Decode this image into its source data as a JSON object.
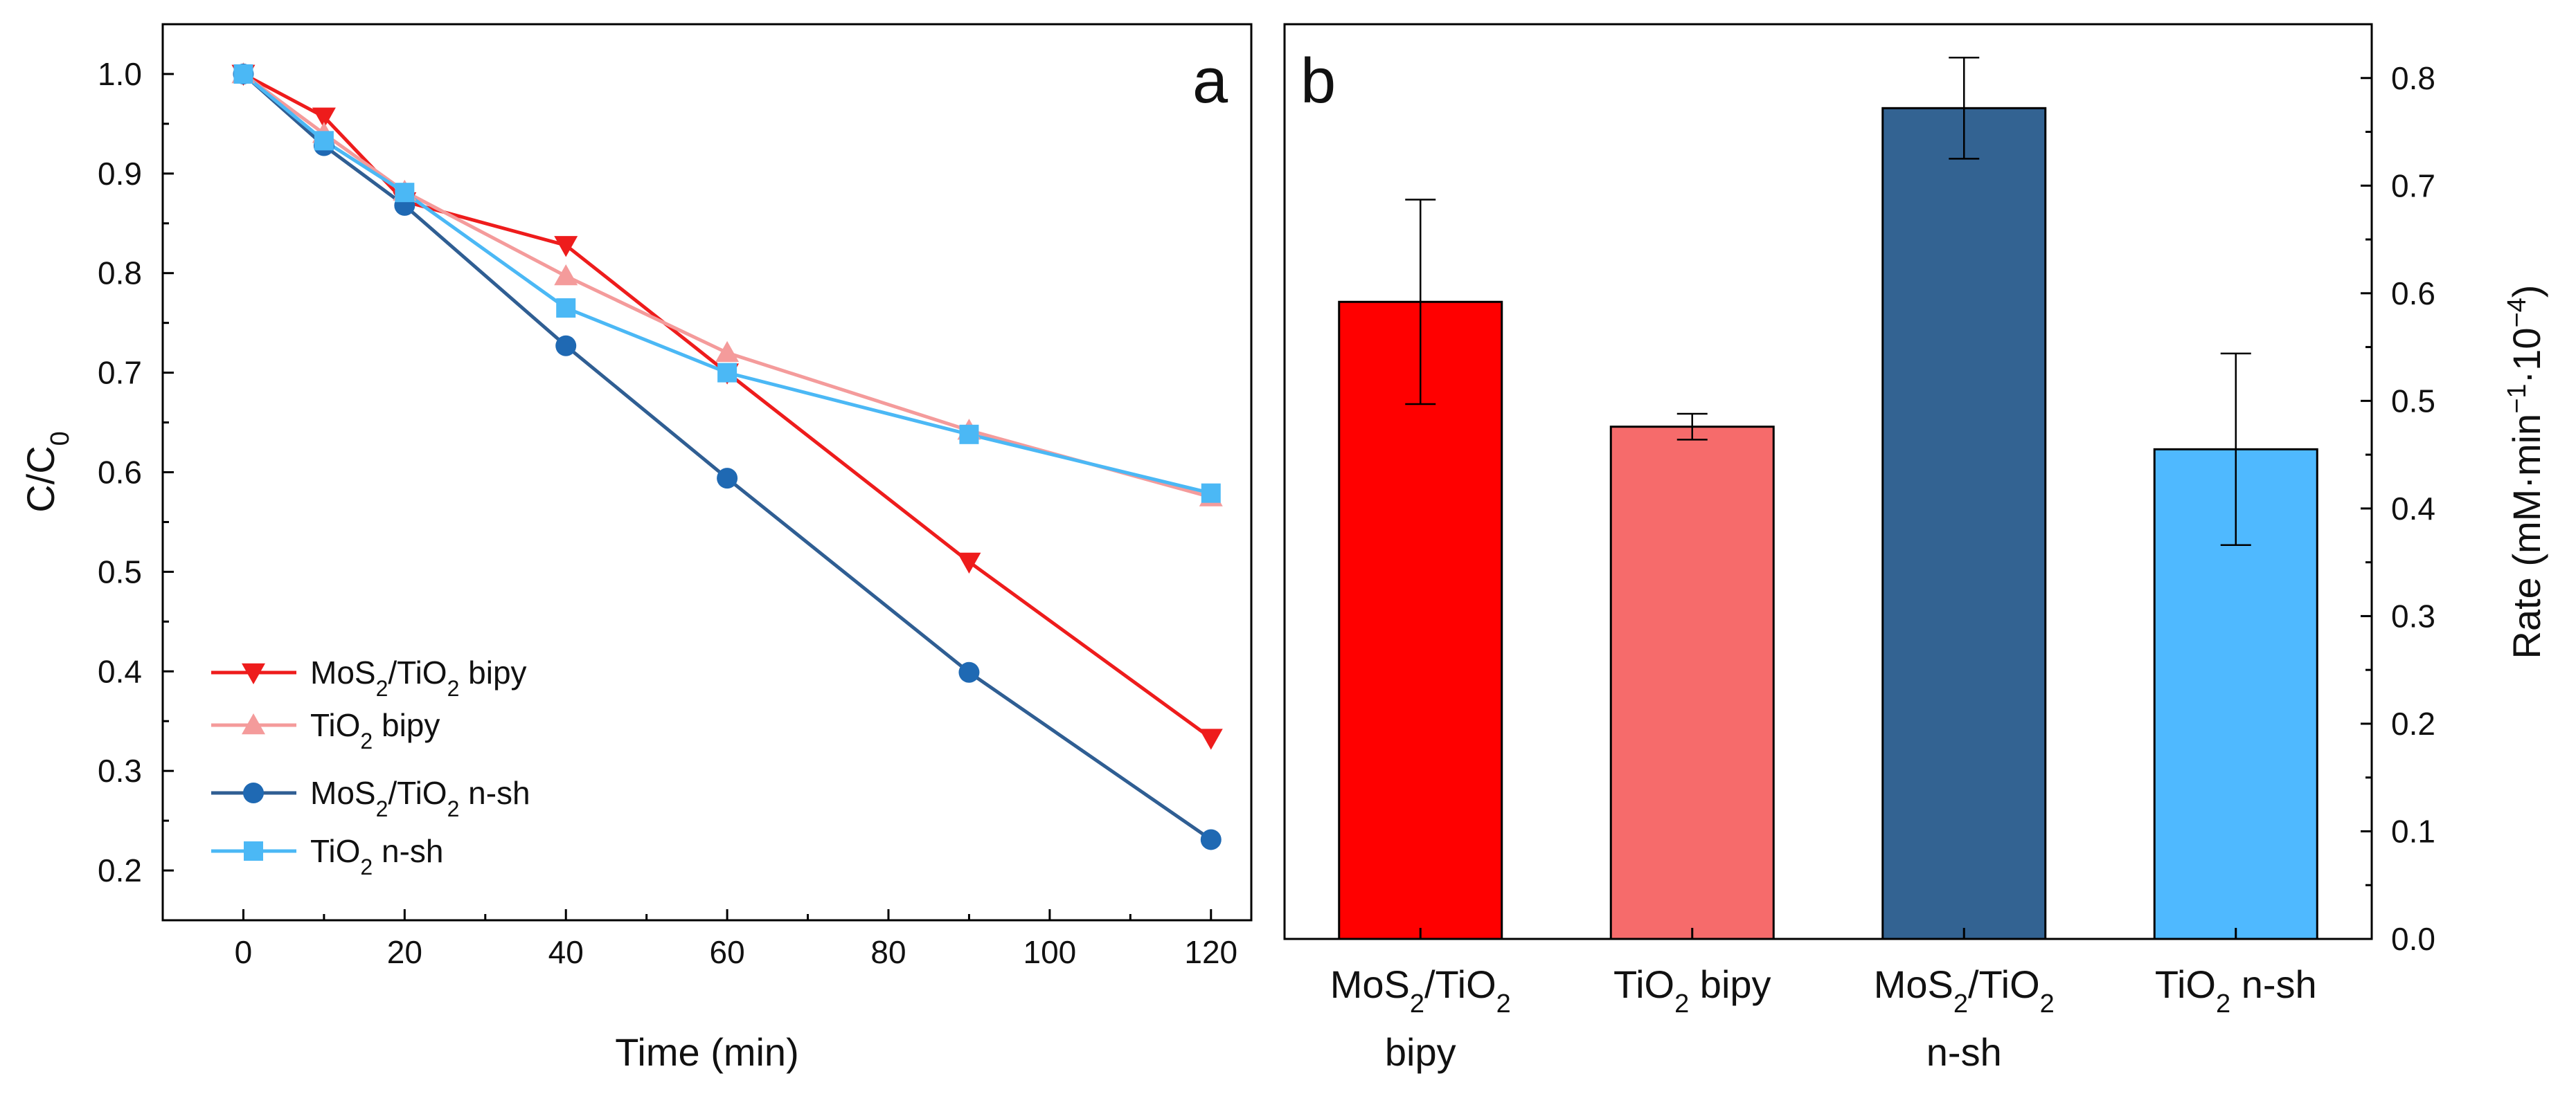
{
  "chart_data": [
    {
      "panel": "a",
      "type": "line",
      "xlabel": "Time (min)",
      "ylabel": {
        "main": "C/C",
        "sub": "0"
      },
      "xlim": [
        -10,
        125
      ],
      "ylim": [
        0.15,
        1.05
      ],
      "xticks": [
        0,
        20,
        40,
        60,
        80,
        100,
        120
      ],
      "yticks": [
        0.2,
        0.3,
        0.4,
        0.5,
        0.6,
        0.7,
        0.8,
        0.9,
        1.0
      ],
      "ytick_labels": [
        "0.2",
        "0.3",
        "0.4",
        "0.5",
        "0.6",
        "0.7",
        "0.8",
        "0.9",
        "1.0"
      ],
      "legend_position": "bottom-left",
      "series": [
        {
          "key": "mos2_bipy",
          "parts": [
            "MoS",
            "2",
            "/TiO",
            "2",
            " bipy"
          ],
          "color": "#ee1c1c",
          "marker": "triangle-down",
          "x": [
            0,
            10,
            20,
            40,
            60,
            90,
            120
          ],
          "y": [
            1.0,
            0.957,
            0.872,
            0.828,
            0.7,
            0.51,
            0.333
          ]
        },
        {
          "key": "tio2_bipy",
          "parts": [
            "TiO",
            "2",
            " bipy"
          ],
          "color": "#f49b9b",
          "marker": "triangle-up",
          "x": [
            0,
            10,
            20,
            40,
            60,
            90,
            120
          ],
          "y": [
            1.0,
            0.94,
            0.882,
            0.797,
            0.72,
            0.642,
            0.575
          ]
        },
        {
          "key": "mos2_nsh",
          "parts": [
            "MoS",
            "2",
            "/TiO",
            "2",
            " n-sh"
          ],
          "color": "#2f5e93",
          "marker": "circle",
          "marker_color": "#1f69b3",
          "x": [
            0,
            10,
            20,
            40,
            60,
            90,
            120
          ],
          "y": [
            1.0,
            0.928,
            0.868,
            0.727,
            0.594,
            0.399,
            0.231
          ]
        },
        {
          "key": "tio2_nsh",
          "parts": [
            "TiO",
            "2",
            " n-sh"
          ],
          "color": "#4bb8f5",
          "marker": "square",
          "x": [
            0,
            10,
            20,
            40,
            60,
            90,
            120
          ],
          "y": [
            1.0,
            0.933,
            0.881,
            0.765,
            0.7,
            0.638,
            0.579
          ]
        }
      ]
    },
    {
      "panel": "b",
      "type": "bar",
      "ylabel": {
        "parts": [
          "Rate (mM·min",
          "−1",
          "·10",
          "−4",
          ")"
        ]
      },
      "ylim": [
        0.0,
        0.85
      ],
      "yticks": [
        0.0,
        0.1,
        0.2,
        0.3,
        0.4,
        0.5,
        0.6,
        0.7,
        0.8
      ],
      "ytick_labels": [
        "0.0",
        "0.1",
        "0.2",
        "0.3",
        "0.4",
        "0.5",
        "0.6",
        "0.7",
        "0.8"
      ],
      "bars": [
        {
          "key": "mos2_bipy",
          "label_line1": [
            "MoS",
            "2",
            "/TiO",
            "2"
          ],
          "label_line2": "bipy",
          "value": 0.592,
          "error": 0.095,
          "color": "#ff0000"
        },
        {
          "key": "tio2_bipy",
          "label_line1": [
            "TiO",
            "2",
            " bipy"
          ],
          "label_line2": "",
          "value": 0.476,
          "error": 0.012,
          "color": "#f66b6b"
        },
        {
          "key": "mos2_nsh",
          "label_line1": [
            "MoS",
            "2",
            "/TiO",
            "2"
          ],
          "label_line2": "n-sh",
          "value": 0.772,
          "error": 0.047,
          "color": "#336392"
        },
        {
          "key": "tio2_nsh",
          "label_line1": [
            "TiO",
            "2",
            " n-sh"
          ],
          "label_line2": "",
          "value": 0.455,
          "error": 0.089,
          "color": "#4fb9ff"
        }
      ]
    }
  ]
}
